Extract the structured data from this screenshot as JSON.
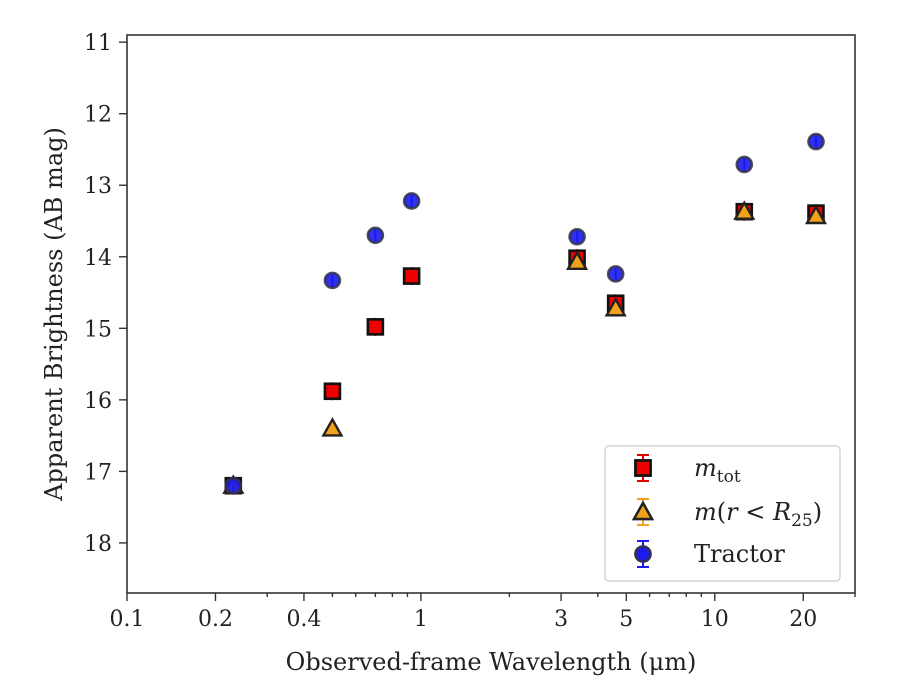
{
  "chart_data": {
    "type": "scatter",
    "xlabel": "Observed-frame Wavelength (μm)",
    "ylabel": "Apparent Brightness (AB mag)",
    "xscale": "log",
    "xlim": [
      0.1,
      30
    ],
    "ylim": [
      18.7,
      10.9
    ],
    "y_inverted": true,
    "x_ticks": [
      0.1,
      0.2,
      0.4,
      1,
      3,
      5,
      10,
      20
    ],
    "x_tick_labels": [
      "0.1",
      "0.2",
      "0.4",
      "1",
      "3",
      "5",
      "10",
      "20"
    ],
    "y_ticks": [
      11,
      12,
      13,
      14,
      15,
      16,
      17,
      18
    ],
    "y_tick_labels": [
      "11",
      "12",
      "13",
      "14",
      "15",
      "16",
      "17",
      "18"
    ],
    "grid": false,
    "legend_position": "bottom-right",
    "series": [
      {
        "name": "m_tot",
        "label_html": "<tspan font-style='italic'>m</tspan><tspan font-size='17' dy='6'>tot</tspan>",
        "marker": "square",
        "color": "#ee0000",
        "errorbar_color": "#dd0000",
        "x": [
          0.23,
          0.5,
          0.7,
          0.93,
          3.4,
          4.6,
          12.6,
          22.1
        ],
        "y": [
          17.2,
          15.88,
          14.98,
          14.27,
          14.02,
          14.65,
          13.37,
          13.39
        ]
      },
      {
        "name": "m(r < R_25)",
        "label_html": "<tspan font-style='italic'>m</tspan>(<tspan font-style='italic'>r</tspan> &lt; <tspan font-style='italic'>R</tspan><tspan font-size='17' dy='6'>25</tspan><tspan dy='-6'>)</tspan>",
        "marker": "triangle",
        "color": "#f2a21a",
        "errorbar_color": "#f2a21a",
        "x": [
          0.23,
          0.5,
          3.4,
          4.6,
          12.6,
          22.1
        ],
        "y": [
          17.2,
          16.4,
          14.07,
          14.72,
          13.37,
          13.43
        ]
      },
      {
        "name": "Tractor",
        "marker": "circle",
        "color": "#1a1aee",
        "errorbar_color": "#1a1aee",
        "x": [
          0.23,
          0.5,
          0.7,
          0.93,
          3.4,
          4.6,
          12.6,
          22.1
        ],
        "y": [
          17.2,
          14.33,
          13.7,
          13.22,
          13.72,
          14.24,
          12.71,
          12.39
        ]
      }
    ]
  }
}
